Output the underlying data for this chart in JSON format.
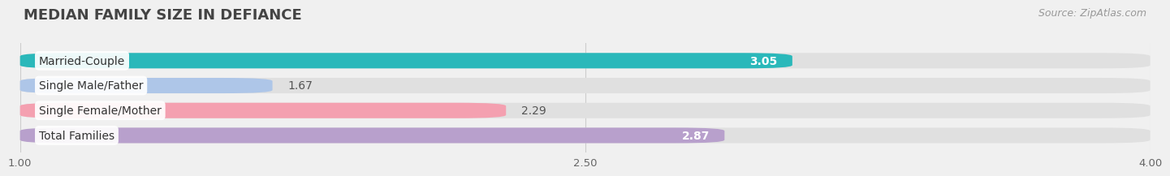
{
  "title": "MEDIAN FAMILY SIZE IN DEFIANCE",
  "source": "Source: ZipAtlas.com",
  "categories": [
    "Married-Couple",
    "Single Male/Father",
    "Single Female/Mother",
    "Total Families"
  ],
  "values": [
    3.05,
    1.67,
    2.29,
    2.87
  ],
  "bar_colors": [
    "#2ab8ba",
    "#aec6e8",
    "#f4a0b0",
    "#b8a0cc"
  ],
  "value_inside": [
    true,
    false,
    false,
    true
  ],
  "xlim_data": [
    1.0,
    4.0
  ],
  "xmin": 1.0,
  "xmax": 4.0,
  "xticks": [
    1.0,
    2.5,
    4.0
  ],
  "background_color": "#f0f0f0",
  "bar_background_color": "#e0e0e0",
  "bar_height": 0.62,
  "label_fontsize": 10,
  "value_fontsize": 10,
  "title_fontsize": 13,
  "source_fontsize": 9
}
